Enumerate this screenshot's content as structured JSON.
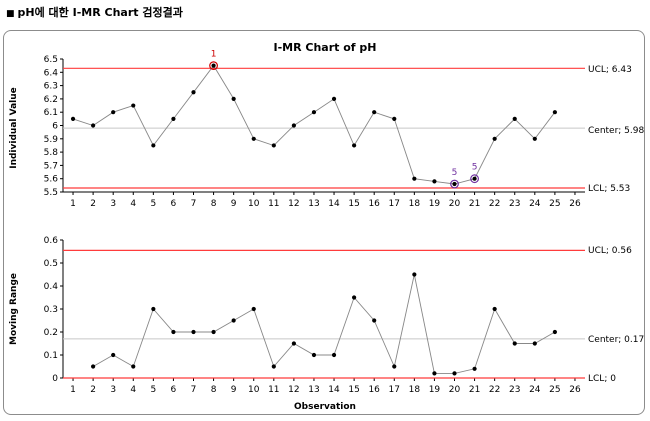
{
  "heading": "pH에 대한 I-MR Chart 검정결과",
  "heading_bullet": "■",
  "chart_data": [
    {
      "type": "line",
      "title": "I-MR Chart of pH",
      "xlabel": "",
      "ylabel": "Individual Value",
      "ylim": [
        5.5,
        6.5
      ],
      "yticks": [
        "5.5",
        "5.6",
        "5.7",
        "5.8",
        "5.9",
        "6",
        "6.1",
        "6.2",
        "6.3",
        "6.4",
        "6.5"
      ],
      "xlim": [
        0.5,
        26.5
      ],
      "xticks": [
        "1",
        "2",
        "3",
        "4",
        "5",
        "6",
        "7",
        "8",
        "9",
        "10",
        "11",
        "12",
        "13",
        "14",
        "15",
        "16",
        "17",
        "18",
        "19",
        "20",
        "21",
        "22",
        "23",
        "24",
        "25",
        "26"
      ],
      "x": [
        1,
        2,
        3,
        4,
        5,
        6,
        7,
        8,
        9,
        10,
        11,
        12,
        13,
        14,
        15,
        16,
        17,
        18,
        19,
        20,
        21,
        22,
        23,
        24,
        25
      ],
      "values": [
        6.05,
        6.0,
        6.1,
        6.15,
        5.85,
        6.05,
        6.25,
        6.45,
        6.2,
        5.9,
        5.85,
        6.0,
        6.1,
        6.2,
        5.85,
        6.1,
        6.05,
        5.6,
        5.58,
        5.56,
        5.6,
        5.9,
        6.05,
        5.9,
        6.1
      ],
      "ucl": 6.43,
      "center": 5.98,
      "lcl": 5.53,
      "ucl_label": "UCL; 6.43",
      "center_label": "Center; 5.98",
      "lcl_label": "LCL; 5.53",
      "flags": [
        {
          "x": 8,
          "label": "1",
          "color": "#cc0000"
        },
        {
          "x": 20,
          "label": "5",
          "color": "#7030a0"
        },
        {
          "x": 21,
          "label": "5",
          "color": "#7030a0"
        }
      ]
    },
    {
      "type": "line",
      "title": "",
      "xlabel": "Observation",
      "ylabel": "Moving Range",
      "ylim": [
        0,
        0.6
      ],
      "yticks": [
        "0",
        "0.1",
        "0.2",
        "0.3",
        "0.4",
        "0.5",
        "0.6"
      ],
      "xlim": [
        0.5,
        26.5
      ],
      "xticks": [
        "1",
        "2",
        "3",
        "4",
        "5",
        "6",
        "7",
        "8",
        "9",
        "10",
        "11",
        "12",
        "13",
        "14",
        "15",
        "16",
        "17",
        "18",
        "19",
        "20",
        "21",
        "22",
        "23",
        "24",
        "25",
        "26"
      ],
      "x": [
        2,
        3,
        4,
        5,
        6,
        7,
        8,
        9,
        10,
        11,
        12,
        13,
        14,
        15,
        16,
        17,
        18,
        19,
        20,
        21,
        22,
        23,
        24,
        25
      ],
      "values": [
        0.05,
        0.1,
        0.05,
        0.3,
        0.2,
        0.2,
        0.2,
        0.25,
        0.3,
        0.05,
        0.15,
        0.1,
        0.1,
        0.35,
        0.25,
        0.05,
        0.45,
        0.02,
        0.02,
        0.04,
        0.3,
        0.15,
        0.15,
        0.2
      ],
      "ucl": 0.555,
      "center": 0.17,
      "lcl": 0,
      "ucl_label": "UCL; 0.56",
      "center_label": "Center; 0.17",
      "lcl_label": "LCL; 0"
    }
  ],
  "colors": {
    "limit": "#ff3b3b",
    "center": "#c8c8c8",
    "series": "#888888",
    "point": "#000000",
    "axis": "#000000"
  }
}
